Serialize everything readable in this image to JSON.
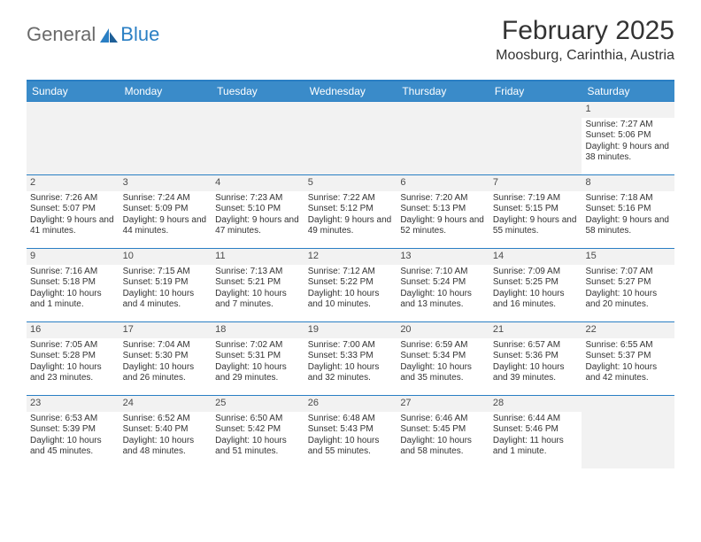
{
  "brand": {
    "text_general": "General",
    "text_blue": "Blue"
  },
  "header": {
    "month_title": "February 2025",
    "location": "Moosburg, Carinthia, Austria"
  },
  "colors": {
    "header_bg": "#3a8bc9",
    "border": "#2a7fc4",
    "shade": "#f2f2f2",
    "text": "#333333",
    "logo_grey": "#6a6a6a",
    "logo_blue": "#2a7fc4"
  },
  "weekdays": [
    "Sunday",
    "Monday",
    "Tuesday",
    "Wednesday",
    "Thursday",
    "Friday",
    "Saturday"
  ],
  "weeks": [
    [
      null,
      null,
      null,
      null,
      null,
      null,
      {
        "n": "1",
        "sr": "Sunrise: 7:27 AM",
        "ss": "Sunset: 5:06 PM",
        "dl": "Daylight: 9 hours and 38 minutes."
      }
    ],
    [
      {
        "n": "2",
        "sr": "Sunrise: 7:26 AM",
        "ss": "Sunset: 5:07 PM",
        "dl": "Daylight: 9 hours and 41 minutes."
      },
      {
        "n": "3",
        "sr": "Sunrise: 7:24 AM",
        "ss": "Sunset: 5:09 PM",
        "dl": "Daylight: 9 hours and 44 minutes."
      },
      {
        "n": "4",
        "sr": "Sunrise: 7:23 AM",
        "ss": "Sunset: 5:10 PM",
        "dl": "Daylight: 9 hours and 47 minutes."
      },
      {
        "n": "5",
        "sr": "Sunrise: 7:22 AM",
        "ss": "Sunset: 5:12 PM",
        "dl": "Daylight: 9 hours and 49 minutes."
      },
      {
        "n": "6",
        "sr": "Sunrise: 7:20 AM",
        "ss": "Sunset: 5:13 PM",
        "dl": "Daylight: 9 hours and 52 minutes."
      },
      {
        "n": "7",
        "sr": "Sunrise: 7:19 AM",
        "ss": "Sunset: 5:15 PM",
        "dl": "Daylight: 9 hours and 55 minutes."
      },
      {
        "n": "8",
        "sr": "Sunrise: 7:18 AM",
        "ss": "Sunset: 5:16 PM",
        "dl": "Daylight: 9 hours and 58 minutes."
      }
    ],
    [
      {
        "n": "9",
        "sr": "Sunrise: 7:16 AM",
        "ss": "Sunset: 5:18 PM",
        "dl": "Daylight: 10 hours and 1 minute."
      },
      {
        "n": "10",
        "sr": "Sunrise: 7:15 AM",
        "ss": "Sunset: 5:19 PM",
        "dl": "Daylight: 10 hours and 4 minutes."
      },
      {
        "n": "11",
        "sr": "Sunrise: 7:13 AM",
        "ss": "Sunset: 5:21 PM",
        "dl": "Daylight: 10 hours and 7 minutes."
      },
      {
        "n": "12",
        "sr": "Sunrise: 7:12 AM",
        "ss": "Sunset: 5:22 PM",
        "dl": "Daylight: 10 hours and 10 minutes."
      },
      {
        "n": "13",
        "sr": "Sunrise: 7:10 AM",
        "ss": "Sunset: 5:24 PM",
        "dl": "Daylight: 10 hours and 13 minutes."
      },
      {
        "n": "14",
        "sr": "Sunrise: 7:09 AM",
        "ss": "Sunset: 5:25 PM",
        "dl": "Daylight: 10 hours and 16 minutes."
      },
      {
        "n": "15",
        "sr": "Sunrise: 7:07 AM",
        "ss": "Sunset: 5:27 PM",
        "dl": "Daylight: 10 hours and 20 minutes."
      }
    ],
    [
      {
        "n": "16",
        "sr": "Sunrise: 7:05 AM",
        "ss": "Sunset: 5:28 PM",
        "dl": "Daylight: 10 hours and 23 minutes."
      },
      {
        "n": "17",
        "sr": "Sunrise: 7:04 AM",
        "ss": "Sunset: 5:30 PM",
        "dl": "Daylight: 10 hours and 26 minutes."
      },
      {
        "n": "18",
        "sr": "Sunrise: 7:02 AM",
        "ss": "Sunset: 5:31 PM",
        "dl": "Daylight: 10 hours and 29 minutes."
      },
      {
        "n": "19",
        "sr": "Sunrise: 7:00 AM",
        "ss": "Sunset: 5:33 PM",
        "dl": "Daylight: 10 hours and 32 minutes."
      },
      {
        "n": "20",
        "sr": "Sunrise: 6:59 AM",
        "ss": "Sunset: 5:34 PM",
        "dl": "Daylight: 10 hours and 35 minutes."
      },
      {
        "n": "21",
        "sr": "Sunrise: 6:57 AM",
        "ss": "Sunset: 5:36 PM",
        "dl": "Daylight: 10 hours and 39 minutes."
      },
      {
        "n": "22",
        "sr": "Sunrise: 6:55 AM",
        "ss": "Sunset: 5:37 PM",
        "dl": "Daylight: 10 hours and 42 minutes."
      }
    ],
    [
      {
        "n": "23",
        "sr": "Sunrise: 6:53 AM",
        "ss": "Sunset: 5:39 PM",
        "dl": "Daylight: 10 hours and 45 minutes."
      },
      {
        "n": "24",
        "sr": "Sunrise: 6:52 AM",
        "ss": "Sunset: 5:40 PM",
        "dl": "Daylight: 10 hours and 48 minutes."
      },
      {
        "n": "25",
        "sr": "Sunrise: 6:50 AM",
        "ss": "Sunset: 5:42 PM",
        "dl": "Daylight: 10 hours and 51 minutes."
      },
      {
        "n": "26",
        "sr": "Sunrise: 6:48 AM",
        "ss": "Sunset: 5:43 PM",
        "dl": "Daylight: 10 hours and 55 minutes."
      },
      {
        "n": "27",
        "sr": "Sunrise: 6:46 AM",
        "ss": "Sunset: 5:45 PM",
        "dl": "Daylight: 10 hours and 58 minutes."
      },
      {
        "n": "28",
        "sr": "Sunrise: 6:44 AM",
        "ss": "Sunset: 5:46 PM",
        "dl": "Daylight: 11 hours and 1 minute."
      },
      null
    ]
  ]
}
